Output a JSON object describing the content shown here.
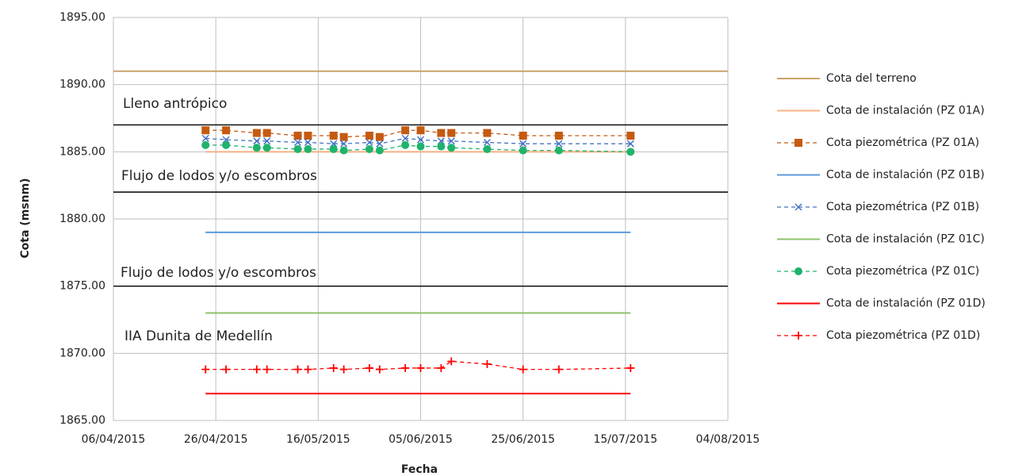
{
  "chart_data": {
    "type": "line",
    "x_label": "Fecha",
    "y_label": "Cota (msnm)",
    "xlim": [
      "2015-04-06",
      "2015-08-04"
    ],
    "xticks": [
      {
        "value": "2015-04-06",
        "label": "06/04/2015"
      },
      {
        "value": "2015-04-26",
        "label": "26/04/2015"
      },
      {
        "value": "2015-05-16",
        "label": "16/05/2015"
      },
      {
        "value": "2015-06-05",
        "label": "05/06/2015"
      },
      {
        "value": "2015-06-25",
        "label": "25/06/2015"
      },
      {
        "value": "2015-07-15",
        "label": "15/07/2015"
      },
      {
        "value": "2015-08-04",
        "label": "04/08/2015"
      }
    ],
    "ylim": [
      1865,
      1895
    ],
    "yticks": [
      {
        "value": 1865,
        "label": "1865.00"
      },
      {
        "value": 1870,
        "label": "1870.00"
      },
      {
        "value": 1875,
        "label": "1875.00"
      },
      {
        "value": 1880,
        "label": "1880.00"
      },
      {
        "value": 1885,
        "label": "1885.00"
      },
      {
        "value": 1890,
        "label": "1890.00"
      },
      {
        "value": 1895,
        "label": "1895.00"
      }
    ],
    "grid": true,
    "legend": "right",
    "boundaries": [
      1887,
      1882,
      1875
    ],
    "boundary_color": "#000000",
    "annotations": [
      "Lleno antrópico",
      "Flujo de lodos y/o escombros",
      "Flujo de lodos y/o escombros",
      "IIA Dunita de Medellín"
    ],
    "dates": [
      "2015-04-24",
      "2015-04-28",
      "2015-05-04",
      "2015-05-06",
      "2015-05-12",
      "2015-05-14",
      "2015-05-19",
      "2015-05-21",
      "2015-05-26",
      "2015-05-28",
      "2015-06-02",
      "2015-06-05",
      "2015-06-09",
      "2015-06-11",
      "2015-06-18",
      "2015-06-25",
      "2015-07-02",
      "2015-07-16"
    ],
    "series": [
      {
        "name": "Cota del terreno",
        "color": "#c9a46a",
        "dash": false,
        "marker": "none",
        "x": [
          "2015-04-06",
          "2015-08-04"
        ],
        "values": [
          1891,
          1891
        ]
      },
      {
        "name": "Cota de instalación (PZ 01A)",
        "color": "#f4b183",
        "dash": false,
        "marker": "none",
        "x": [
          "2015-04-24",
          "2015-07-16"
        ],
        "values": [
          1885,
          1885
        ]
      },
      {
        "name": "Cota piezométrica (PZ 01A)",
        "color": "#c55a11",
        "dash": true,
        "marker": "square",
        "values": [
          1886.6,
          1886.6,
          1886.4,
          1886.4,
          1886.2,
          1886.2,
          1886.2,
          1886.1,
          1886.2,
          1886.1,
          1886.6,
          1886.6,
          1886.4,
          1886.4,
          1886.4,
          1886.2,
          1886.2,
          1886.2
        ]
      },
      {
        "name": "Cota de instalación (PZ 01B)",
        "color": "#5b9bd5",
        "dash": false,
        "marker": "none",
        "x": [
          "2015-04-24",
          "2015-07-16"
        ],
        "values": [
          1879,
          1879
        ]
      },
      {
        "name": "Cota piezométrica (PZ 01B)",
        "color": "#4472c4",
        "dash": true,
        "marker": "x",
        "values": [
          1886.0,
          1885.9,
          1885.8,
          1885.8,
          1885.7,
          1885.7,
          1885.6,
          1885.6,
          1885.7,
          1885.6,
          1886.0,
          1885.9,
          1885.8,
          1885.8,
          1885.7,
          1885.6,
          1885.6,
          1885.6
        ]
      },
      {
        "name": "Cota de instalación (PZ 01C)",
        "color": "#8cc26a",
        "dash": false,
        "marker": "none",
        "x": [
          "2015-04-24",
          "2015-07-16"
        ],
        "values": [
          1873,
          1873
        ]
      },
      {
        "name": "Cota piezométrica (PZ 01C)",
        "color": "#1fb36b",
        "dash": true,
        "marker": "circle",
        "values": [
          1885.5,
          1885.5,
          1885.3,
          1885.3,
          1885.2,
          1885.2,
          1885.2,
          1885.1,
          1885.2,
          1885.1,
          1885.5,
          1885.4,
          1885.4,
          1885.3,
          1885.2,
          1885.1,
          1885.1,
          1885.0
        ]
      },
      {
        "name": "Cota de instalación (PZ 01D)",
        "color": "#ff0000",
        "dash": false,
        "marker": "none",
        "x": [
          "2015-04-24",
          "2015-07-16"
        ],
        "values": [
          1867,
          1867
        ]
      },
      {
        "name": "Cota piezométrica (PZ 01D)",
        "color": "#ff0000",
        "dash": true,
        "marker": "plus",
        "values": [
          1868.8,
          1868.8,
          1868.8,
          1868.8,
          1868.8,
          1868.8,
          1868.9,
          1868.8,
          1868.9,
          1868.8,
          1868.9,
          1868.9,
          1868.9,
          1869.4,
          1869.2,
          1868.8,
          1868.8,
          1868.9
        ]
      }
    ]
  }
}
